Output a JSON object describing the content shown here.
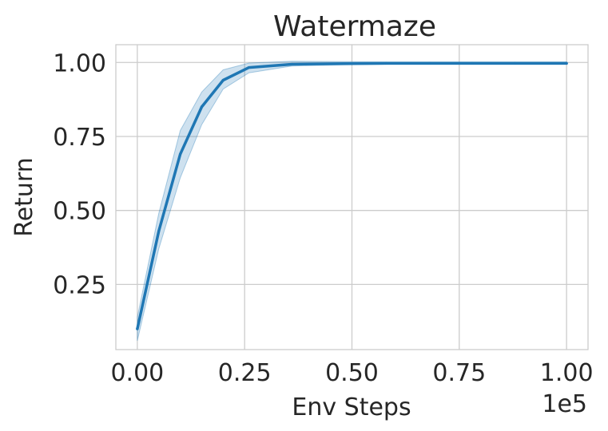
{
  "chart_data": {
    "type": "line",
    "title": "Watermaze",
    "xlabel": "Env Steps",
    "ylabel": "Return",
    "x_offset_label": "1e5",
    "xlim": [
      -0.05,
      1.05
    ],
    "ylim": [
      0.03,
      1.06
    ],
    "xticks": [
      0.0,
      0.25,
      0.5,
      0.75,
      1.0
    ],
    "xtick_labels": [
      "0.00",
      "0.25",
      "0.50",
      "0.75",
      "1.00"
    ],
    "yticks": [
      0.25,
      0.5,
      0.75,
      1.0
    ],
    "ytick_labels": [
      "0.25",
      "0.50",
      "0.75",
      "1.00"
    ],
    "grid": true,
    "series": [
      {
        "color": "#1f77b4",
        "band_color": "#1f77b4",
        "x": [
          0.0,
          0.05,
          0.1,
          0.15,
          0.2,
          0.26,
          0.36,
          0.48,
          0.58,
          0.68,
          0.78,
          0.88,
          1.0
        ],
        "y": [
          0.1,
          0.43,
          0.69,
          0.85,
          0.94,
          0.983,
          0.994,
          0.996,
          0.997,
          0.997,
          0.997,
          0.997,
          0.997
        ],
        "lower": [
          0.06,
          0.37,
          0.61,
          0.79,
          0.91,
          0.965,
          0.988,
          0.992,
          0.994,
          0.994,
          0.994,
          0.994,
          0.994
        ],
        "upper": [
          0.14,
          0.49,
          0.77,
          0.9,
          0.975,
          0.998,
          1.004,
          1.003,
          1.002,
          1.002,
          1.002,
          1.002,
          1.002
        ]
      }
    ]
  }
}
